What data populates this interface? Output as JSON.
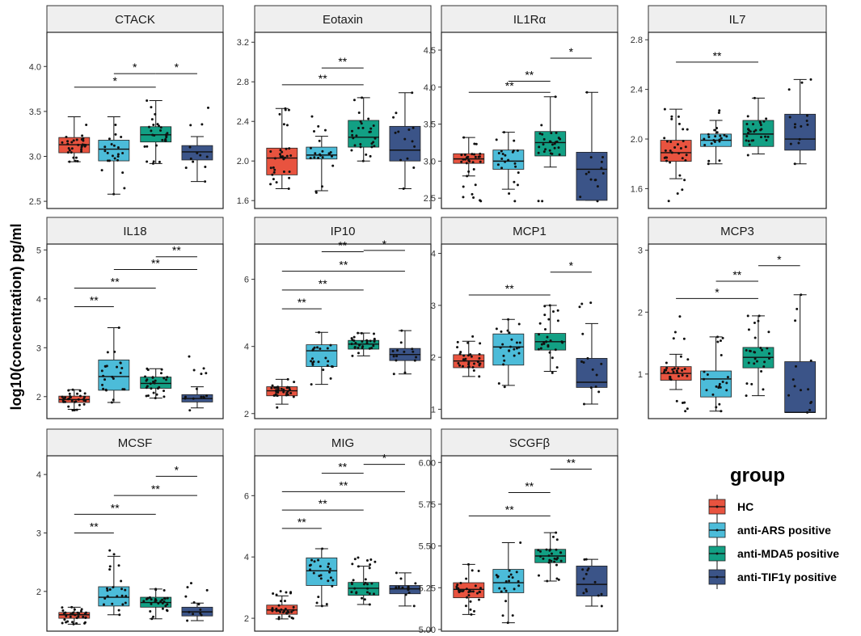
{
  "chart_data": {
    "type": "boxplot",
    "ylabel": "log10(concentration) pg/ml",
    "legend": {
      "title": "group",
      "position": "bottom-right",
      "entries": [
        "HC",
        "anti-ARS positive",
        "anti-MDA5 positive",
        "anti-TIF1γ positive"
      ]
    },
    "colors": [
      "#e8533f",
      "#4cbcd9",
      "#12a084",
      "#3b5488"
    ],
    "panels": [
      {
        "title": "CTACK",
        "ylim": [
          2.42,
          4.38
        ],
        "ticks": [
          2.5,
          3.0,
          3.5,
          4.0
        ],
        "tick_labels": [
          "2.5",
          "3.0",
          "3.5",
          "4.0"
        ],
        "boxes": [
          {
            "min": 2.94,
            "q1": 3.04,
            "median": 3.13,
            "q3": 3.21,
            "max": 3.44,
            "n": 32,
            "low": 2.94,
            "high": 3.35
          },
          {
            "min": 2.58,
            "q1": 2.95,
            "median": 3.08,
            "q3": 3.18,
            "max": 3.44,
            "n": 22,
            "low": 2.58,
            "high": 3.35
          },
          {
            "min": 2.92,
            "q1": 3.16,
            "median": 3.24,
            "q3": 3.33,
            "max": 3.62,
            "n": 28,
            "low": 2.92,
            "high": 3.62
          },
          {
            "min": 2.72,
            "q1": 2.96,
            "median": 3.05,
            "q3": 3.12,
            "max": 3.22,
            "n": 12,
            "low": 2.72,
            "high": 3.54
          }
        ],
        "significance": [
          {
            "from": 2,
            "to": 3,
            "label": "*",
            "value": 3.92
          },
          {
            "from": 1,
            "to": 3,
            "label": "*",
            "value": 3.77
          },
          {
            "from": 3,
            "to": 4,
            "label": "*",
            "value": 3.92
          }
        ]
      },
      {
        "title": "Eotaxin",
        "ylim": [
          1.52,
          3.3
        ],
        "ticks": [
          1.6,
          2.0,
          2.4,
          2.8,
          3.2
        ],
        "tick_labels": [
          "1.6",
          "2.0",
          "2.4",
          "2.8",
          "3.2"
        ],
        "boxes": [
          {
            "min": 1.72,
            "q1": 1.86,
            "median": 2.03,
            "q3": 2.13,
            "max": 2.53,
            "n": 32,
            "low": 1.72,
            "high": 2.53
          },
          {
            "min": 1.7,
            "q1": 2.02,
            "median": 2.06,
            "q3": 2.14,
            "max": 2.25,
            "n": 22,
            "low": 1.68,
            "high": 2.45
          },
          {
            "min": 2.0,
            "q1": 2.14,
            "median": 2.24,
            "q3": 2.41,
            "max": 2.64,
            "n": 28,
            "low": 2.0,
            "high": 2.64
          },
          {
            "min": 1.72,
            "q1": 2.0,
            "median": 2.11,
            "q3": 2.35,
            "max": 2.69,
            "n": 14,
            "low": 1.72,
            "high": 2.69
          }
        ],
        "significance": [
          {
            "from": 2,
            "to": 3,
            "label": "**",
            "value": 2.94
          },
          {
            "from": 1,
            "to": 3,
            "label": "**",
            "value": 2.77
          }
        ]
      },
      {
        "title": "IL1Rα",
        "ylim": [
          2.36,
          4.74
        ],
        "ticks": [
          2.5,
          3.0,
          3.5,
          4.0,
          4.5
        ],
        "tick_labels": [
          "2.5",
          "3.0",
          "3.5",
          "4.0",
          "4.5"
        ],
        "boxes": [
          {
            "min": 2.8,
            "q1": 2.97,
            "median": 3.03,
            "q3": 3.1,
            "max": 3.32,
            "n": 32,
            "low": 2.46,
            "high": 3.32
          },
          {
            "min": 2.62,
            "q1": 2.89,
            "median": 3.0,
            "q3": 3.15,
            "max": 3.39,
            "n": 22,
            "low": 2.46,
            "high": 3.39
          },
          {
            "min": 2.92,
            "q1": 3.07,
            "median": 3.25,
            "q3": 3.4,
            "max": 3.87,
            "n": 28,
            "low": 2.46,
            "high": 3.87
          },
          {
            "min": 2.47,
            "q1": 2.47,
            "median": 2.89,
            "q3": 3.12,
            "max": 3.93,
            "n": 14,
            "low": 2.46,
            "high": 3.93
          }
        ],
        "significance": [
          {
            "from": 2,
            "to": 3,
            "label": "**",
            "value": 4.08
          },
          {
            "from": 1,
            "to": 3,
            "label": "**",
            "value": 3.93
          },
          {
            "from": 3,
            "to": 4,
            "label": "*",
            "value": 4.39
          }
        ]
      },
      {
        "title": "IL7",
        "ylim": [
          1.44,
          2.86
        ],
        "ticks": [
          1.6,
          2.0,
          2.4,
          2.8
        ],
        "tick_labels": [
          "1.6",
          "2.0",
          "2.4",
          "2.8"
        ],
        "boxes": [
          {
            "min": 1.68,
            "q1": 1.82,
            "median": 1.89,
            "q3": 1.99,
            "max": 2.24,
            "n": 32,
            "low": 1.5,
            "high": 2.24
          },
          {
            "min": 1.8,
            "q1": 1.94,
            "median": 1.99,
            "q3": 2.04,
            "max": 2.15,
            "n": 22,
            "low": 1.8,
            "high": 2.23
          },
          {
            "min": 1.88,
            "q1": 1.94,
            "median": 2.04,
            "q3": 2.15,
            "max": 2.33,
            "n": 28,
            "low": 1.87,
            "high": 2.33
          },
          {
            "min": 1.8,
            "q1": 1.91,
            "median": 2.0,
            "q3": 2.2,
            "max": 2.48,
            "n": 14,
            "low": 1.8,
            "high": 2.48
          }
        ],
        "significance": [
          {
            "from": 1,
            "to": 3,
            "label": "**",
            "value": 2.62
          }
        ]
      },
      {
        "title": "IL18",
        "ylim": [
          1.55,
          5.12
        ],
        "ticks": [
          2,
          3,
          4,
          5
        ],
        "tick_labels": [
          "2",
          "3",
          "4",
          "5"
        ],
        "boxes": [
          {
            "min": 1.74,
            "q1": 1.88,
            "median": 1.94,
            "q3": 2.01,
            "max": 2.14,
            "n": 32,
            "low": 1.72,
            "high": 2.14
          },
          {
            "min": 1.88,
            "q1": 2.13,
            "median": 2.41,
            "q3": 2.75,
            "max": 3.41,
            "n": 24,
            "low": 1.88,
            "high": 3.41
          },
          {
            "min": 1.97,
            "q1": 2.17,
            "median": 2.27,
            "q3": 2.4,
            "max": 2.57,
            "n": 28,
            "low": 1.97,
            "high": 2.57
          },
          {
            "min": 1.77,
            "q1": 1.89,
            "median": 1.96,
            "q3": 2.04,
            "max": 2.2,
            "n": 14,
            "low": 1.72,
            "high": 2.82
          }
        ],
        "significance": [
          {
            "from": 1,
            "to": 2,
            "label": "**",
            "value": 3.84
          },
          {
            "from": 1,
            "to": 3,
            "label": "**",
            "value": 4.22
          },
          {
            "from": 2,
            "to": 4,
            "label": "**",
            "value": 4.6
          },
          {
            "from": 3,
            "to": 4,
            "label": "**",
            "value": 4.86
          }
        ]
      },
      {
        "title": "IP10",
        "ylim": [
          1.85,
          7.05
        ],
        "ticks": [
          2,
          4,
          6
        ],
        "tick_labels": [
          "2",
          "4",
          "6"
        ],
        "boxes": [
          {
            "min": 2.28,
            "q1": 2.53,
            "median": 2.68,
            "q3": 2.8,
            "max": 3.02,
            "n": 32,
            "low": 2.18,
            "high": 3.02
          },
          {
            "min": 2.87,
            "q1": 3.4,
            "median": 3.87,
            "q3": 4.05,
            "max": 4.42,
            "n": 22,
            "low": 2.87,
            "high": 4.42
          },
          {
            "min": 3.72,
            "q1": 3.92,
            "median": 4.07,
            "q3": 4.18,
            "max": 4.4,
            "n": 28,
            "low": 3.72,
            "high": 4.4
          },
          {
            "min": 3.18,
            "q1": 3.58,
            "median": 3.76,
            "q3": 3.94,
            "max": 4.47,
            "n": 14,
            "low": 3.18,
            "high": 4.47
          }
        ],
        "significance": [
          {
            "from": 1,
            "to": 2,
            "label": "**",
            "value": 5.12
          },
          {
            "from": 1,
            "to": 3,
            "label": "**",
            "value": 5.68
          },
          {
            "from": 1,
            "to": 4,
            "label": "**",
            "value": 6.24
          },
          {
            "from": 2,
            "to": 3,
            "label": "**",
            "value": 6.82
          },
          {
            "from": 3,
            "to": 4,
            "label": "*",
            "value": 6.86
          }
        ]
      },
      {
        "title": "MCP1",
        "ylim": [
          0.82,
          4.18
        ],
        "ticks": [
          1,
          2,
          3,
          4
        ],
        "tick_labels": [
          "1",
          "2",
          "3",
          "4"
        ],
        "boxes": [
          {
            "min": 1.63,
            "q1": 1.8,
            "median": 1.93,
            "q3": 2.05,
            "max": 2.31,
            "n": 32,
            "low": 1.63,
            "high": 2.4
          },
          {
            "min": 1.46,
            "q1": 1.85,
            "median": 2.2,
            "q3": 2.45,
            "max": 2.73,
            "n": 24,
            "low": 1.43,
            "high": 2.73
          },
          {
            "min": 1.73,
            "q1": 2.14,
            "median": 2.3,
            "q3": 2.46,
            "max": 3.0,
            "n": 28,
            "low": 1.7,
            "high": 3.0
          },
          {
            "min": 1.1,
            "q1": 1.42,
            "median": 1.52,
            "q3": 1.98,
            "max": 2.65,
            "n": 14,
            "low": 1.1,
            "high": 3.05
          }
        ],
        "significance": [
          {
            "from": 1,
            "to": 3,
            "label": "**",
            "value": 3.2
          },
          {
            "from": 3,
            "to": 4,
            "label": "*",
            "value": 3.64
          }
        ]
      },
      {
        "title": "MCP3",
        "ylim": [
          0.28,
          3.1
        ],
        "ticks": [
          1,
          2,
          3
        ],
        "tick_labels": [
          "1",
          "2",
          "3"
        ],
        "boxes": [
          {
            "min": 0.75,
            "q1": 0.9,
            "median": 1.01,
            "q3": 1.12,
            "max": 1.32,
            "n": 32,
            "low": 0.4,
            "high": 1.93
          },
          {
            "min": 0.4,
            "q1": 0.63,
            "median": 0.92,
            "q3": 1.05,
            "max": 1.6,
            "n": 22,
            "low": 0.4,
            "high": 1.6
          },
          {
            "min": 0.65,
            "q1": 1.1,
            "median": 1.27,
            "q3": 1.43,
            "max": 1.94,
            "n": 28,
            "low": 0.65,
            "high": 1.94
          },
          {
            "min": 0.38,
            "q1": 0.38,
            "median": 0.38,
            "q3": 1.2,
            "max": 2.28,
            "n": 14,
            "low": 0.38,
            "high": 2.28
          }
        ],
        "significance": [
          {
            "from": 1,
            "to": 3,
            "label": "*",
            "value": 2.22
          },
          {
            "from": 2,
            "to": 3,
            "label": "**",
            "value": 2.5
          },
          {
            "from": 3,
            "to": 4,
            "label": "*",
            "value": 2.75
          }
        ]
      },
      {
        "title": "MCSF",
        "ylim": [
          1.32,
          4.32
        ],
        "ticks": [
          2,
          3,
          4
        ],
        "tick_labels": [
          "2",
          "3",
          "4"
        ],
        "boxes": [
          {
            "min": 1.44,
            "q1": 1.54,
            "median": 1.6,
            "q3": 1.64,
            "max": 1.73,
            "n": 32,
            "low": 1.44,
            "high": 1.73
          },
          {
            "min": 1.6,
            "q1": 1.75,
            "median": 1.9,
            "q3": 2.08,
            "max": 2.6,
            "n": 24,
            "low": 1.6,
            "high": 2.7
          },
          {
            "min": 1.53,
            "q1": 1.73,
            "median": 1.81,
            "q3": 1.9,
            "max": 2.04,
            "n": 28,
            "low": 1.53,
            "high": 2.04
          },
          {
            "min": 1.5,
            "q1": 1.58,
            "median": 1.65,
            "q3": 1.73,
            "max": 1.8,
            "n": 12,
            "low": 1.5,
            "high": 2.14
          }
        ],
        "significance": [
          {
            "from": 1,
            "to": 2,
            "label": "**",
            "value": 3.0
          },
          {
            "from": 1,
            "to": 3,
            "label": "**",
            "value": 3.32
          },
          {
            "from": 2,
            "to": 4,
            "label": "**",
            "value": 3.64
          },
          {
            "from": 3,
            "to": 4,
            "label": "*",
            "value": 3.97
          }
        ]
      },
      {
        "title": "MIG",
        "ylim": [
          1.58,
          7.3
        ],
        "ticks": [
          2,
          4,
          6
        ],
        "tick_labels": [
          "2",
          "4",
          "6"
        ],
        "boxes": [
          {
            "min": 1.98,
            "q1": 2.13,
            "median": 2.27,
            "q3": 2.43,
            "max": 2.73,
            "n": 32,
            "low": 1.98,
            "high": 2.88
          },
          {
            "min": 2.4,
            "q1": 3.07,
            "median": 3.55,
            "q3": 3.97,
            "max": 4.27,
            "n": 24,
            "low": 2.4,
            "high": 4.27
          },
          {
            "min": 2.45,
            "q1": 2.75,
            "median": 2.98,
            "q3": 3.17,
            "max": 3.7,
            "n": 28,
            "low": 2.45,
            "high": 3.98
          },
          {
            "min": 2.4,
            "q1": 2.8,
            "median": 2.96,
            "q3": 3.07,
            "max": 3.48,
            "n": 14,
            "low": 2.4,
            "high": 3.48
          }
        ],
        "significance": [
          {
            "from": 1,
            "to": 2,
            "label": "**",
            "value": 4.93
          },
          {
            "from": 1,
            "to": 3,
            "label": "**",
            "value": 5.53
          },
          {
            "from": 1,
            "to": 4,
            "label": "**",
            "value": 6.13
          },
          {
            "from": 2,
            "to": 3,
            "label": "**",
            "value": 6.73
          },
          {
            "from": 3,
            "to": 4,
            "label": "*",
            "value": 7.02
          }
        ]
      },
      {
        "title": "SCGFβ",
        "ylim": [
          4.99,
          6.04
        ],
        "ticks": [
          5.0,
          5.25,
          5.5,
          5.75,
          6.0
        ],
        "tick_labels": [
          "5.00",
          "5.25",
          "5.50",
          "5.75",
          "6.00"
        ],
        "boxes": [
          {
            "min": 5.09,
            "q1": 5.19,
            "median": 5.24,
            "q3": 5.28,
            "max": 5.39,
            "n": 32,
            "low": 5.09,
            "high": 5.39
          },
          {
            "min": 5.04,
            "q1": 5.22,
            "median": 5.28,
            "q3": 5.36,
            "max": 5.52,
            "n": 22,
            "low": 5.04,
            "high": 5.52
          },
          {
            "min": 5.29,
            "q1": 5.4,
            "median": 5.44,
            "q3": 5.48,
            "max": 5.58,
            "n": 28,
            "low": 5.29,
            "high": 5.58
          },
          {
            "min": 5.14,
            "q1": 5.2,
            "median": 5.27,
            "q3": 5.38,
            "max": 5.42,
            "n": 14,
            "low": 5.14,
            "high": 5.42
          }
        ],
        "significance": [
          {
            "from": 1,
            "to": 3,
            "label": "**",
            "value": 5.68
          },
          {
            "from": 2,
            "to": 3,
            "label": "**",
            "value": 5.82
          },
          {
            "from": 3,
            "to": 4,
            "label": "**",
            "value": 5.96
          }
        ]
      }
    ]
  }
}
